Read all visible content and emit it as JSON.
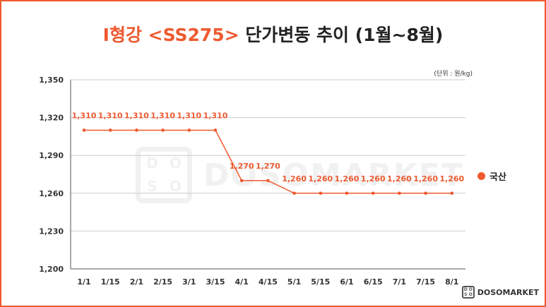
{
  "title": {
    "accent": "I형강 <SS275>",
    "rest": " 단가변동 추이 (1월~8월)"
  },
  "unit_note": "(단위 : 원/kg)",
  "watermark": {
    "box_letters": [
      "D",
      "O",
      "S",
      "O"
    ],
    "text": "DOSOMARKET"
  },
  "brand": {
    "box_letters": [
      "D",
      "O",
      "S",
      "O"
    ],
    "text": "DOSOMARKET"
  },
  "legend": {
    "label": "국산",
    "color": "#ee5a30"
  },
  "colors": {
    "accent": "#ee5a30",
    "grid": "#cccccc",
    "axis": "#555555"
  },
  "chart_data": {
    "type": "line",
    "title": "I형강 <SS275> 단가변동 추이 (1월~8월)",
    "xlabel": "",
    "ylabel": "",
    "categories": [
      "1/1",
      "1/15",
      "2/1",
      "2/15",
      "3/1",
      "3/15",
      "4/1",
      "4/15",
      "5/1",
      "5/15",
      "6/1",
      "6/15",
      "7/1",
      "7/15",
      "8/1"
    ],
    "series": [
      {
        "name": "국산",
        "values": [
          1310,
          1310,
          1310,
          1310,
          1310,
          1310,
          1270,
          1270,
          1260,
          1260,
          1260,
          1260,
          1260,
          1260,
          1260
        ],
        "labels": [
          "1,310",
          "1,310",
          "1,310",
          "1,310",
          "1,310",
          "1,310",
          "1,270",
          "1,270",
          "1,260",
          "1,260",
          "1,260",
          "1,260",
          "1,260",
          "1,260",
          "1,260"
        ]
      }
    ],
    "ylim": [
      1200,
      1350
    ],
    "yticks": [
      1200,
      1230,
      1260,
      1290,
      1320,
      1350
    ],
    "ytick_labels": [
      "1,200",
      "1,230",
      "1,260",
      "1,290",
      "1,320",
      "1,350"
    ],
    "grid": true,
    "legend_position": "right"
  }
}
